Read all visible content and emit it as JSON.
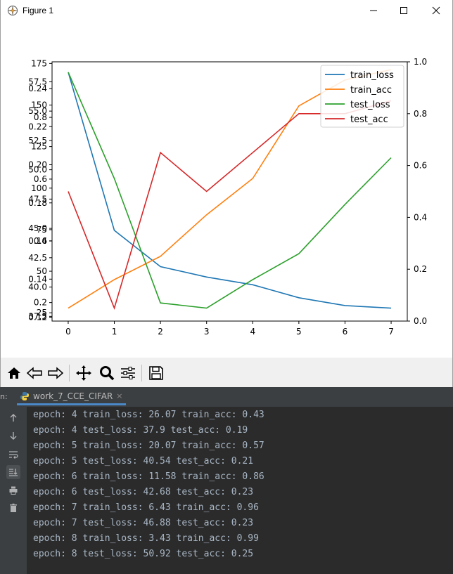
{
  "window": {
    "title": "Figure 1",
    "minimize_icon": "minimize-icon",
    "maximize_icon": "maximize-icon",
    "close_icon": "close-icon"
  },
  "chart_data": {
    "type": "line",
    "x": [
      0,
      1,
      2,
      3,
      4,
      5,
      6,
      7
    ],
    "xticks": [
      "0",
      "1",
      "2",
      "3",
      "4",
      "5",
      "6",
      "7"
    ],
    "right_yticks": [
      "0.0",
      "0.2",
      "0.4",
      "0.6",
      "0.8",
      "1.0"
    ],
    "right_ylim": [
      0.0,
      1.0
    ],
    "left_tick_sets": [
      {
        "ticks": [
          "0.12",
          "0.14",
          "0.16",
          "0.18",
          "0.20",
          "0.22",
          "0.24"
        ],
        "ylim": [
          0.118,
          0.254
        ]
      },
      {
        "ticks": [
          "25",
          "50",
          "75",
          "100",
          "125",
          "150",
          "175"
        ],
        "ylim": [
          20,
          176
        ]
      },
      {
        "ticks": [
          "37.5",
          "40.0",
          "42.5",
          "45.0",
          "47.5",
          "50.0",
          "52.5",
          "55.0",
          "57.5"
        ],
        "ylim": [
          37.1,
          59.2
        ]
      },
      {
        "ticks": [
          "0.2",
          "0.4",
          "0.6",
          "0.8"
        ],
        "ylim": [
          0.14,
          0.98
        ]
      }
    ],
    "series": [
      {
        "name": "train_loss",
        "color": "#1f77b4",
        "values": [
          0.96,
          0.35,
          0.21,
          0.17,
          0.14,
          0.09,
          0.06,
          0.05
        ]
      },
      {
        "name": "train_acc",
        "color": "#ff7f0e",
        "values": [
          0.05,
          0.16,
          0.25,
          0.41,
          0.55,
          0.83,
          0.93,
          0.97
        ]
      },
      {
        "name": "test_loss",
        "color": "#2ca02c",
        "values": [
          0.96,
          0.55,
          0.07,
          0.05,
          0.16,
          0.26,
          0.45,
          0.63
        ]
      },
      {
        "name": "test_acc",
        "color": "#d62728",
        "values": [
          0.5,
          0.05,
          0.65,
          0.5,
          0.65,
          0.8,
          0.8,
          0.85
        ]
      }
    ],
    "legend": "top-right",
    "grid": false
  },
  "toolbar": {
    "items": [
      "home-icon",
      "back-icon",
      "forward-icon",
      "pan-icon",
      "zoom-icon",
      "configure-icon",
      "save-icon"
    ]
  },
  "console": {
    "tab_prefix": "n:",
    "tab_label": "work_7_CCE_CIFAR",
    "tab_close": "×",
    "lines": [
      "epoch: 4 train_loss: 26.07 train_acc: 0.43",
      "epoch: 4 test_loss: 37.9 test_acc: 0.19",
      "epoch: 5 train_loss: 20.07 train_acc: 0.57",
      "epoch: 5 test_loss: 40.54 test_acc: 0.21",
      "epoch: 6 train_loss: 11.58 train_acc: 0.86",
      "epoch: 6 test_loss: 42.68 test_acc: 0.23",
      "epoch: 7 train_loss: 6.43 train_acc: 0.96",
      "epoch: 7 test_loss: 46.88 test_acc: 0.23",
      "epoch: 8 train_loss: 3.43 train_acc: 0.99",
      "epoch: 8 test_loss: 50.92 test_acc: 0.25"
    ],
    "gutter": [
      "scroll-up-icon",
      "scroll-down-icon",
      "soft-wrap-icon",
      "scroll-to-end-icon",
      "print-icon",
      "clear-icon"
    ]
  }
}
